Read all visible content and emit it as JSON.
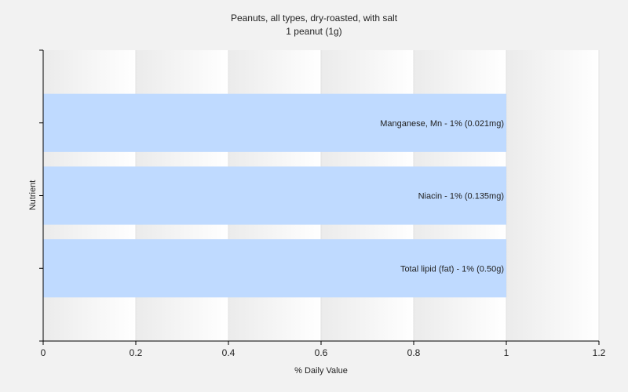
{
  "chart_data": {
    "type": "bar",
    "orientation": "horizontal",
    "title": "Peanuts, all types, dry-roasted, with salt",
    "subtitle": "1 peanut (1g)",
    "xlabel": "% Daily Value",
    "ylabel": "Nutrient",
    "xlim": [
      0,
      1.2
    ],
    "xticks": [
      "0",
      "0.2",
      "0.4",
      "0.6",
      "0.8",
      "1",
      "1.2"
    ],
    "grid": true,
    "bar_color": "#bfdaff",
    "categories": [
      "Manganese, Mn",
      "Niacin",
      "Total lipid (fat)"
    ],
    "values": [
      1,
      1,
      1
    ],
    "bar_labels": [
      "Manganese, Mn - 1% (0.021mg)",
      "Niacin - 1% (0.135mg)",
      "Total lipid (fat) - 1% (0.50g)"
    ]
  }
}
